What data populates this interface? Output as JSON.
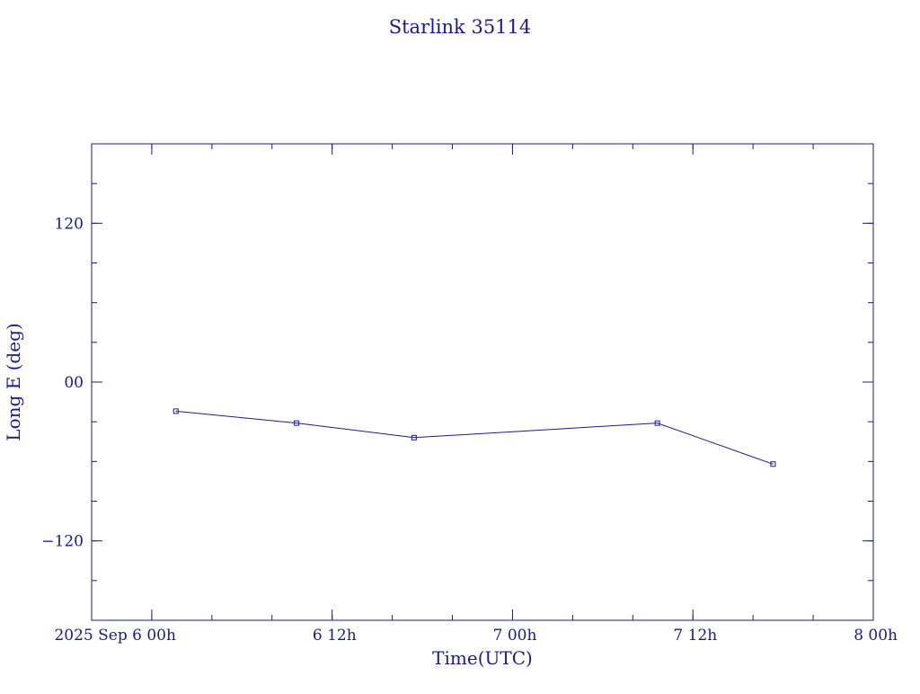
{
  "chart_data": {
    "type": "line",
    "title": "Starlink 35114",
    "xlabel": "Time(UTC)",
    "ylabel": "Long E (deg)",
    "color": "#1a1a8c",
    "xlim": [
      "2025-09-05T20:00",
      "2025-09-08T00:00"
    ],
    "ylim": [
      -180,
      180
    ],
    "grid": false,
    "x_ticks": [
      {
        "x": "2025-09-06T00:00",
        "label": "2025 Sep  6  00h"
      },
      {
        "x": "2025-09-06T12:00",
        "label": "6  12h"
      },
      {
        "x": "2025-09-07T00:00",
        "label": "7  00h"
      },
      {
        "x": "2025-09-07T12:00",
        "label": "7  12h"
      },
      {
        "x": "2025-09-08T00:00",
        "label": "8  00h"
      }
    ],
    "y_ticks": [
      {
        "y": 120,
        "label": "120"
      },
      {
        "y": 0,
        "label": "00"
      },
      {
        "y": -120,
        "label": "−120"
      }
    ],
    "series": [
      {
        "points": [
          {
            "x": "2025-09-06T01:36",
            "y": -22
          },
          {
            "x": "2025-09-06T09:38",
            "y": -31
          },
          {
            "x": "2025-09-06T17:27",
            "y": -42
          },
          {
            "x": "2025-09-07T09:38",
            "y": -31
          },
          {
            "x": "2025-09-07T17:20",
            "y": -62
          }
        ]
      }
    ]
  }
}
